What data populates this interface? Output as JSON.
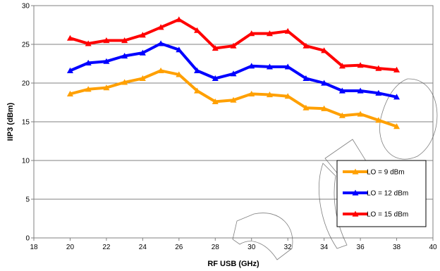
{
  "chart_data": {
    "type": "line",
    "xlabel": "RF USB (GHz)",
    "ylabel": "IIP3 (dBm)",
    "xlim": [
      18,
      40
    ],
    "ylim": [
      0,
      30
    ],
    "x_ticks": [
      "18",
      "20",
      "22",
      "24",
      "26",
      "28",
      "30",
      "32",
      "34",
      "36",
      "38",
      "40"
    ],
    "y_ticks": [
      "0",
      "5",
      "10",
      "15",
      "20",
      "25",
      "30"
    ],
    "grid": "horizontal",
    "legend_position": "bottom-right",
    "x": [
      20,
      21,
      22,
      23,
      24,
      25,
      26,
      27,
      28,
      29,
      30,
      31,
      32,
      33,
      34,
      35,
      36,
      37,
      38
    ],
    "series": [
      {
        "name": "LO = 9 dBm",
        "color": "#FFA000",
        "values": [
          18.6,
          19.2,
          19.4,
          20.1,
          20.6,
          21.6,
          21.1,
          19.0,
          17.6,
          17.8,
          18.6,
          18.5,
          18.3,
          16.8,
          16.7,
          15.8,
          16.0,
          15.2,
          14.4
        ]
      },
      {
        "name": "LO = 12 dBm",
        "color": "#0000FF",
        "values": [
          21.6,
          22.6,
          22.8,
          23.5,
          23.9,
          25.1,
          24.3,
          21.6,
          20.6,
          21.2,
          22.2,
          22.1,
          22.1,
          20.6,
          20.0,
          19.0,
          19.0,
          18.7,
          18.2
        ]
      },
      {
        "name": "LO = 15 dBm",
        "color": "#FF0000",
        "values": [
          25.8,
          25.1,
          25.5,
          25.5,
          26.2,
          27.2,
          28.2,
          26.8,
          24.5,
          24.8,
          26.4,
          26.4,
          26.7,
          24.8,
          24.2,
          22.2,
          22.3,
          21.9,
          21.7
        ]
      }
    ]
  }
}
